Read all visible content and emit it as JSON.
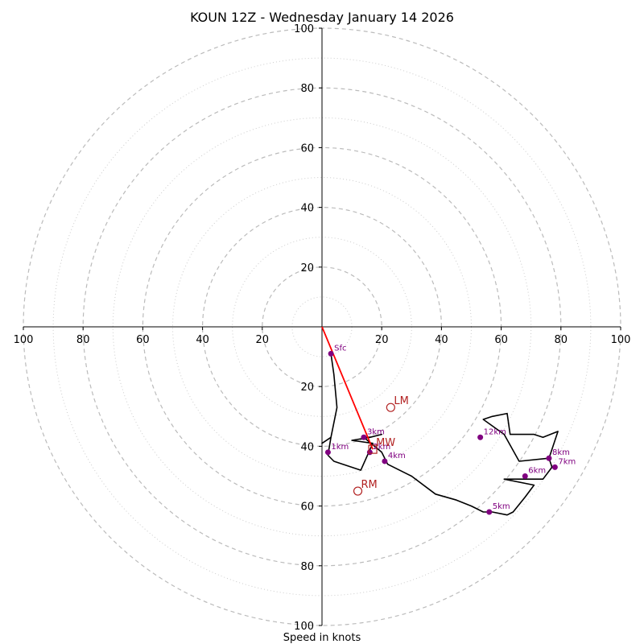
{
  "chart_data": {
    "type": "hodograph",
    "title": "KOUN 12Z - Wednesday January 14 2026",
    "xlabel": "Speed in knots",
    "axis_range": [
      -100,
      100
    ],
    "major_rings": [
      20,
      40,
      60,
      80,
      100
    ],
    "minor_rings": [
      10,
      30,
      50,
      70,
      90
    ],
    "x_ticks": [
      "100",
      "80",
      "60",
      "40",
      "20",
      "20",
      "40",
      "60",
      "80",
      "100"
    ],
    "y_ticks_top": [
      "100",
      "80",
      "60",
      "40",
      "20"
    ],
    "y_ticks_bottom": [
      "20",
      "40",
      "60",
      "80",
      "100"
    ],
    "colors": {
      "hodograph": "#000000",
      "height_marker": "#800080",
      "motion": "#b22222",
      "mean_wind_line": "#ff0000",
      "rings": "#bbbbbb"
    },
    "hodograph_trace": [
      [
        3,
        -9
      ],
      [
        4,
        -16
      ],
      [
        5,
        -27
      ],
      [
        3,
        -37
      ],
      [
        0,
        -39
      ],
      [
        3,
        -37
      ],
      [
        2,
        -43
      ],
      [
        4,
        -45
      ],
      [
        7,
        -46
      ],
      [
        13,
        -48
      ],
      [
        17,
        -39
      ],
      [
        10,
        -38
      ],
      [
        16,
        -37
      ],
      [
        20,
        -36
      ],
      [
        16,
        -37
      ],
      [
        14,
        -37
      ],
      [
        20,
        -42
      ],
      [
        22,
        -46
      ],
      [
        30,
        -50
      ],
      [
        38,
        -56
      ],
      [
        45,
        -58
      ],
      [
        50,
        -60
      ],
      [
        54,
        -62
      ],
      [
        57,
        -62
      ],
      [
        62,
        -63
      ],
      [
        64,
        -62
      ],
      [
        68,
        -57
      ],
      [
        71,
        -53
      ],
      [
        61,
        -51
      ],
      [
        69,
        -51
      ],
      [
        74,
        -51
      ],
      [
        77,
        -47
      ],
      [
        76,
        -44
      ],
      [
        66,
        -45
      ],
      [
        61,
        -36
      ],
      [
        54,
        -31
      ],
      [
        57,
        -30
      ],
      [
        62,
        -29
      ],
      [
        63,
        -36
      ],
      [
        71,
        -36
      ],
      [
        74,
        -37
      ],
      [
        79,
        -35
      ],
      [
        76,
        -44
      ]
    ],
    "height_markers": [
      {
        "label": "Sfc",
        "u": 3,
        "v": -9
      },
      {
        "label": "1km",
        "u": 2,
        "v": -42
      },
      {
        "label": "2km",
        "u": 16,
        "v": -42
      },
      {
        "label": "3km",
        "u": 14,
        "v": -37
      },
      {
        "label": "4km",
        "u": 21,
        "v": -45
      },
      {
        "label": "5km",
        "u": 56,
        "v": -62
      },
      {
        "label": "6km",
        "u": 68,
        "v": -50
      },
      {
        "label": "7km",
        "u": 78,
        "v": -47
      },
      {
        "label": "8km",
        "u": 76,
        "v": -44
      },
      {
        "label": "12km",
        "u": 53,
        "v": -37
      }
    ],
    "storm_motions": [
      {
        "label": "LM",
        "u": 23,
        "v": -27
      },
      {
        "label": "MW",
        "u": 17,
        "v": -41
      },
      {
        "label": "RM",
        "u": 12,
        "v": -55
      }
    ],
    "mean_wind_line": {
      "from": [
        0,
        0
      ],
      "to": [
        17,
        -41
      ]
    }
  }
}
